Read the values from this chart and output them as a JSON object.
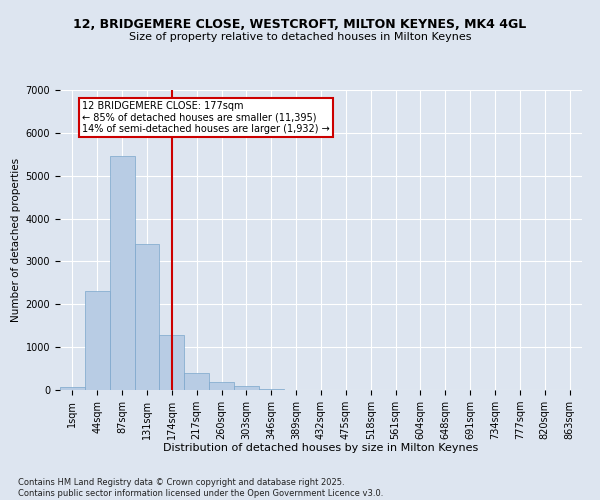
{
  "title": "12, BRIDGEMERE CLOSE, WESTCROFT, MILTON KEYNES, MK4 4GL",
  "subtitle": "Size of property relative to detached houses in Milton Keynes",
  "xlabel": "Distribution of detached houses by size in Milton Keynes",
  "ylabel": "Number of detached properties",
  "categories": [
    "1sqm",
    "44sqm",
    "87sqm",
    "131sqm",
    "174sqm",
    "217sqm",
    "260sqm",
    "303sqm",
    "346sqm",
    "389sqm",
    "432sqm",
    "475sqm",
    "518sqm",
    "561sqm",
    "604sqm",
    "648sqm",
    "691sqm",
    "734sqm",
    "777sqm",
    "820sqm",
    "863sqm"
  ],
  "values": [
    60,
    2300,
    5450,
    3400,
    1280,
    390,
    190,
    90,
    30,
    8,
    3,
    1,
    0,
    0,
    0,
    0,
    0,
    0,
    0,
    0,
    0
  ],
  "bar_color": "#b8cce4",
  "bar_edge_color": "#7aa6cc",
  "vline_x": 4,
  "vline_color": "#cc0000",
  "annotation_text": "12 BRIDGEMERE CLOSE: 177sqm\n← 85% of detached houses are smaller (11,395)\n14% of semi-detached houses are larger (1,932) →",
  "annotation_box_color": "#cc0000",
  "annotation_box_facecolor": "white",
  "footer_text": "Contains HM Land Registry data © Crown copyright and database right 2025.\nContains public sector information licensed under the Open Government Licence v3.0.",
  "ylim": [
    0,
    7000
  ],
  "yticks": [
    0,
    1000,
    2000,
    3000,
    4000,
    5000,
    6000,
    7000
  ],
  "background_color": "#dde5f0",
  "plot_bg_color": "#dde5f0",
  "title_fontsize": 9,
  "subtitle_fontsize": 8,
  "xlabel_fontsize": 8,
  "ylabel_fontsize": 7.5,
  "tick_fontsize": 7,
  "footer_fontsize": 6,
  "annot_fontsize": 7
}
